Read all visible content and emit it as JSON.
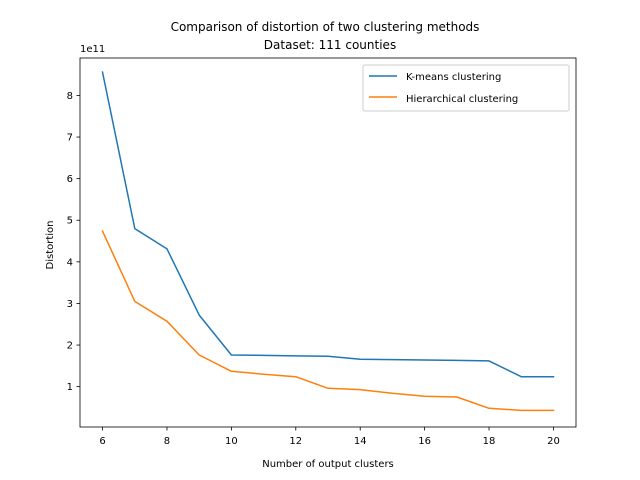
{
  "chart_data": {
    "type": "line",
    "title_line1": "Comparison of distortion of two clustering methods",
    "title_line2": "Dataset: 111 counties",
    "xlabel": "Number of output clusters",
    "ylabel": "Distortion",
    "y_offset_text": "1e11",
    "x_ticks": [
      6,
      8,
      10,
      12,
      14,
      16,
      18,
      20
    ],
    "y_ticks": [
      1,
      2,
      3,
      4,
      5,
      6,
      7,
      8
    ],
    "xlim": [
      5.3,
      20.7
    ],
    "ylim": [
      0.03,
      8.9
    ],
    "grid": false,
    "legend_placement": "top-right",
    "x": [
      6,
      7,
      8,
      9,
      10,
      11,
      12,
      13,
      14,
      15,
      16,
      17,
      18,
      19,
      20
    ],
    "series": [
      {
        "name": "K-means clustering",
        "color": "#1f77b4",
        "values": [
          8.56,
          4.8,
          4.31,
          2.72,
          1.76,
          1.75,
          1.74,
          1.73,
          1.66,
          1.65,
          1.64,
          1.63,
          1.62,
          1.24,
          1.24
        ]
      },
      {
        "name": "Hierarchical clustering",
        "color": "#ff7f0e",
        "values": [
          4.74,
          3.05,
          2.57,
          1.76,
          1.37,
          1.3,
          1.24,
          0.96,
          0.93,
          0.84,
          0.77,
          0.75,
          0.48,
          0.43,
          0.43
        ]
      }
    ]
  }
}
